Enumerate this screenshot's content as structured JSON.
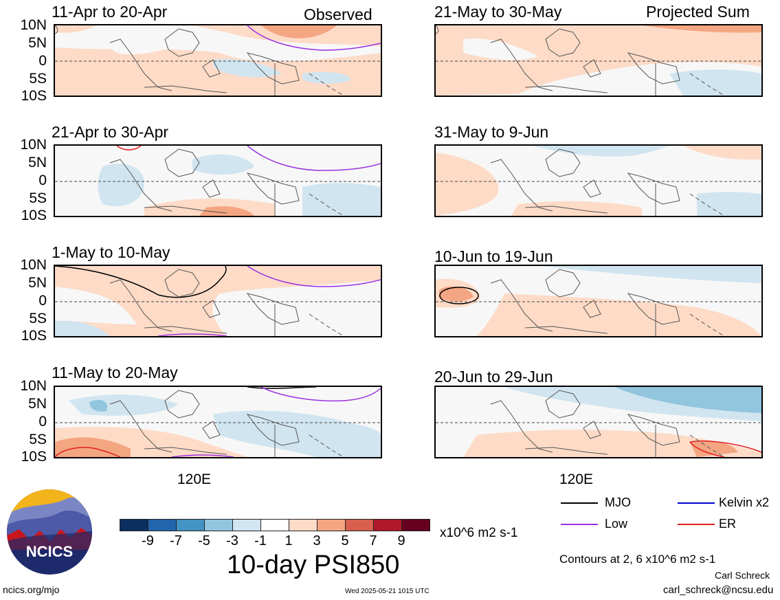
{
  "panels_left": [
    {
      "title": "11-Apr to 20-Apr",
      "tag": "Observed"
    },
    {
      "title": "21-Apr to 30-Apr",
      "tag": ""
    },
    {
      "title": "1-May to 10-May",
      "tag": ""
    },
    {
      "title": "11-May to 20-May",
      "tag": ""
    }
  ],
  "panels_right": [
    {
      "title": "21-May to 30-May",
      "tag": "Projected Sum"
    },
    {
      "title": "31-May to 9-Jun",
      "tag": ""
    },
    {
      "title": "10-Jun to 19-Jun",
      "tag": ""
    },
    {
      "title": "20-Jun to 29-Jun",
      "tag": ""
    }
  ],
  "y_ticks": [
    "10N",
    "5N",
    "0",
    "5S",
    "10S"
  ],
  "x_tick": "120E",
  "colorbar": {
    "colors": [
      "#0b2f5e",
      "#2166ac",
      "#4393c3",
      "#92c5de",
      "#d1e5f0",
      "#ffffff",
      "#fddbc7",
      "#f4a582",
      "#d6604d",
      "#b2182b",
      "#67001f"
    ],
    "labels": [
      "-9",
      "-7",
      "-5",
      "-3",
      "-1",
      "1",
      "3",
      "5",
      "7",
      "9"
    ],
    "units": "x10^6 m2 s-1"
  },
  "main_title": "10-day PSI850",
  "legend": [
    {
      "label": "MJO",
      "color": "#000000"
    },
    {
      "label": "Kelvin x2",
      "color": "#0000cc"
    },
    {
      "label": "Low",
      "color": "#9b30e0"
    },
    {
      "label": "ER",
      "color": "#e02020"
    }
  ],
  "contours_note": "Contours at 2, 6 x10^6 m2 s-1",
  "author": "Carl Schreck",
  "email": "carl_schreck@ncsu.edu",
  "site": "ncics.org/mjo",
  "timestamp": "Wed 2025-05-21 1015 UTC",
  "logo_text": "NCICS"
}
